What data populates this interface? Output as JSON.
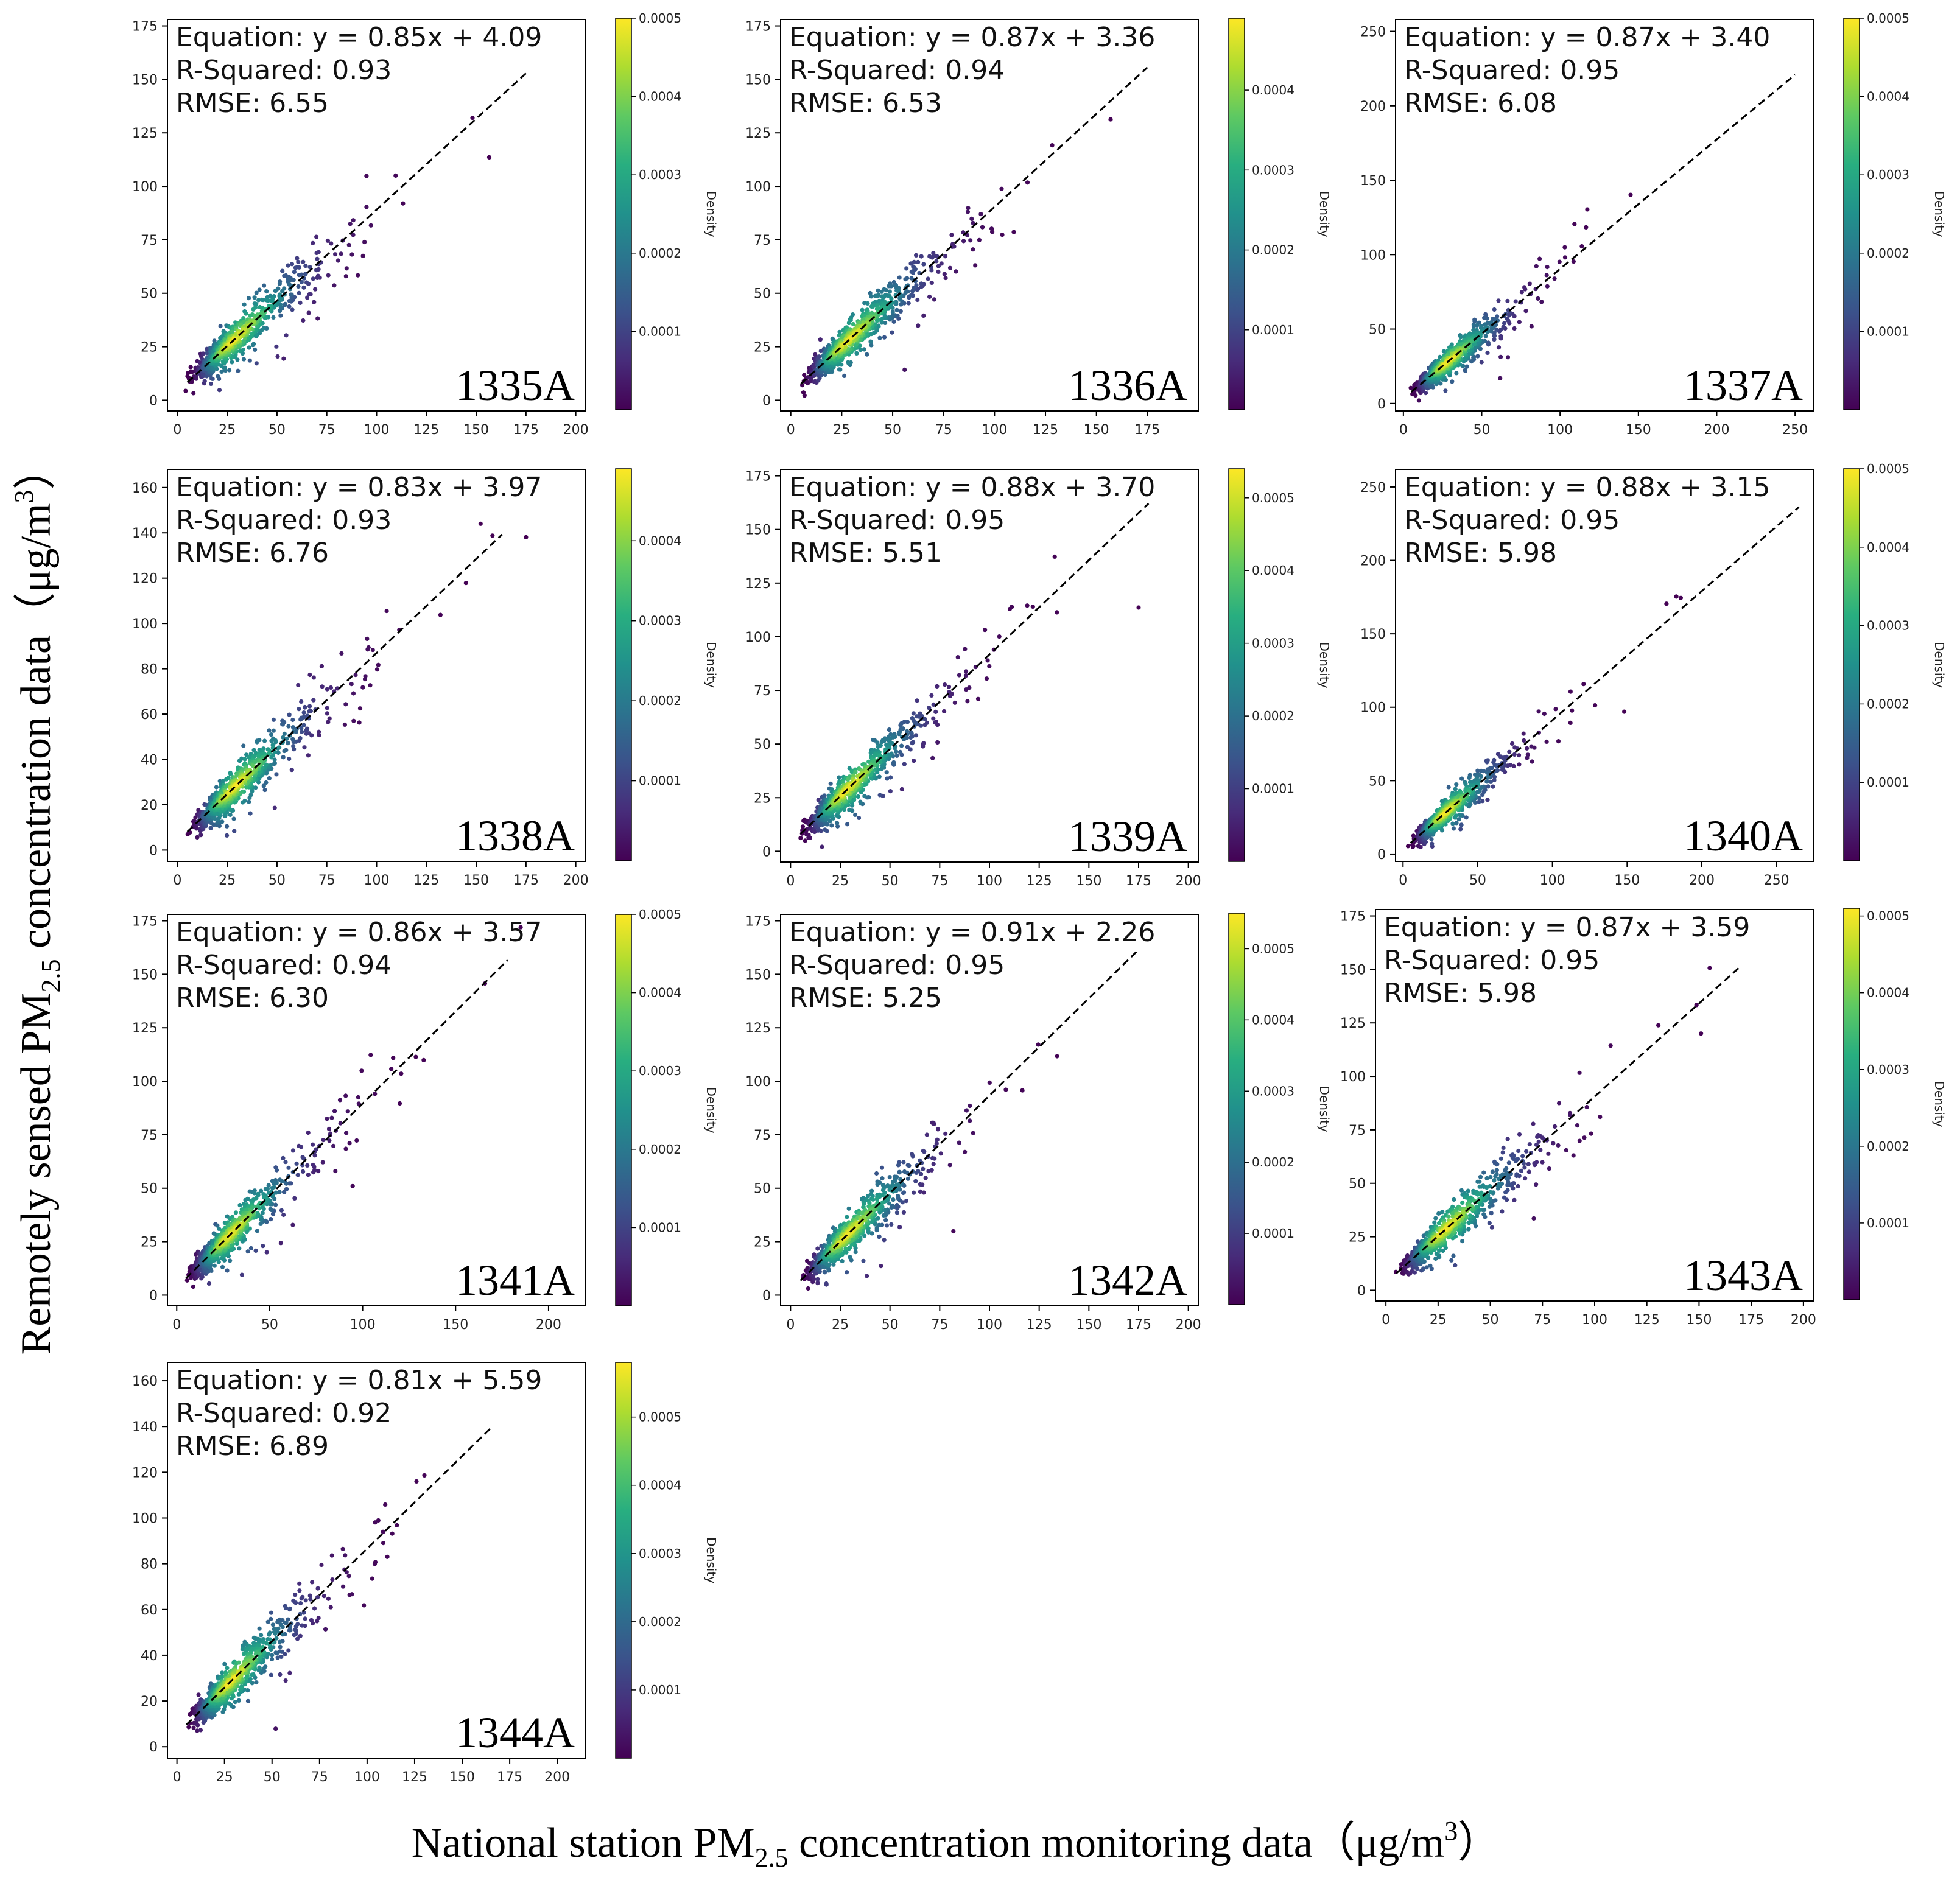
{
  "figure": {
    "ylabel": {
      "lead": "Remotely sensed PM",
      "sub": "2.5",
      "rest": " concentration data（μg/m",
      "sup": "3",
      "close": "）"
    },
    "xlabel": {
      "lead": "National station PM",
      "sub": "2.5",
      "rest": " concentration monitoring data（μg/m",
      "sup": "3",
      "close": "）"
    },
    "colors": {
      "viridis": [
        "#440154",
        "#472c7a",
        "#3b528b",
        "#2c728e",
        "#21918c",
        "#28ae80",
        "#5ec962",
        "#addc30",
        "#fde725"
      ],
      "fit_line": "#000000"
    }
  },
  "chart_data": [
    {
      "type": "scatter",
      "station": "1335A",
      "equation": "Equation: y = 0.85x + 4.09",
      "r_squared": "R-Squared: 0.93",
      "rmse": "RMSE: 6.55",
      "slope": 0.85,
      "intercept": 4.09,
      "r2": 0.93,
      "rmse_value": 6.55,
      "n_points": 700,
      "max": 180,
      "xlim": [
        -5,
        205
      ],
      "ylim": [
        -5,
        178
      ],
      "xticks": [
        0,
        25,
        50,
        75,
        100,
        125,
        150,
        175,
        200
      ],
      "yticks": [
        0,
        25,
        50,
        75,
        100,
        125,
        150,
        175
      ],
      "fit_range": [
        5,
        175
      ],
      "colorbar": {
        "label": "Density",
        "max": 0.0005,
        "ticks": [
          "0.0001",
          "0.0002",
          "0.0003",
          "0.0004",
          "0.0005"
        ],
        "tick_values": [
          0.0001,
          0.0002,
          0.0003,
          0.0004,
          0.0005
        ]
      }
    },
    {
      "type": "scatter",
      "station": "1336A",
      "equation": "Equation: y = 0.87x + 3.36",
      "r_squared": "R-Squared: 0.94",
      "rmse": "RMSE: 6.53",
      "slope": 0.87,
      "intercept": 3.36,
      "r2": 0.94,
      "rmse_value": 6.53,
      "n_points": 700,
      "max": 175,
      "xlim": [
        -5,
        200
      ],
      "ylim": [
        -5,
        178
      ],
      "xticks": [
        0,
        25,
        50,
        75,
        100,
        125,
        150,
        175
      ],
      "yticks": [
        0,
        25,
        50,
        75,
        100,
        125,
        150,
        175
      ],
      "fit_range": [
        5,
        175
      ],
      "colorbar": {
        "label": "Density",
        "max": 0.00049,
        "ticks": [
          "0.0001",
          "0.0002",
          "0.0003",
          "0.0004"
        ],
        "tick_values": [
          0.0001,
          0.0002,
          0.0003,
          0.0004
        ]
      }
    },
    {
      "type": "scatter",
      "station": "1337A",
      "equation": "Equation: y = 0.87x + 3.40",
      "r_squared": "R-Squared: 0.95",
      "rmse": "RMSE: 6.08",
      "slope": 0.87,
      "intercept": 3.4,
      "r2": 0.95,
      "rmse_value": 6.08,
      "n_points": 700,
      "max": 190,
      "xlim": [
        -5,
        262
      ],
      "ylim": [
        -5,
        258
      ],
      "xticks": [
        0,
        50,
        100,
        150,
        200,
        250
      ],
      "yticks": [
        0,
        50,
        100,
        150,
        200,
        250
      ],
      "fit_range": [
        5,
        250
      ],
      "colorbar": {
        "label": "Density",
        "max": 0.0005,
        "ticks": [
          "0.0001",
          "0.0002",
          "0.0003",
          "0.0004",
          "0.0005"
        ],
        "tick_values": [
          0.0001,
          0.0002,
          0.0003,
          0.0004,
          0.0005
        ]
      }
    },
    {
      "type": "scatter",
      "station": "1338A",
      "equation": "Equation: y = 0.83x + 3.97",
      "r_squared": "R-Squared: 0.93",
      "rmse": "RMSE: 6.76",
      "slope": 0.83,
      "intercept": 3.97,
      "r2": 0.93,
      "rmse_value": 6.76,
      "n_points": 700,
      "max": 175,
      "xlim": [
        -5,
        205
      ],
      "ylim": [
        -5,
        168
      ],
      "xticks": [
        0,
        25,
        50,
        75,
        100,
        125,
        150,
        175,
        200
      ],
      "yticks": [
        0,
        20,
        40,
        60,
        80,
        100,
        120,
        140,
        160
      ],
      "fit_range": [
        5,
        163
      ],
      "colorbar": {
        "label": "Density",
        "max": 0.00049,
        "ticks": [
          "0.0001",
          "0.0002",
          "0.0003",
          "0.0004"
        ],
        "tick_values": [
          0.0001,
          0.0002,
          0.0003,
          0.0004
        ]
      }
    },
    {
      "type": "scatter",
      "station": "1339A",
      "equation": "Equation: y = 0.88x + 3.70",
      "r_squared": "R-Squared: 0.95",
      "rmse": "RMSE: 5.51",
      "slope": 0.88,
      "intercept": 3.7,
      "r2": 0.95,
      "rmse_value": 5.51,
      "n_points": 700,
      "max": 175,
      "xlim": [
        -5,
        205
      ],
      "ylim": [
        -5,
        178
      ],
      "xticks": [
        0,
        25,
        50,
        75,
        100,
        125,
        150,
        175,
        200
      ],
      "yticks": [
        0,
        25,
        50,
        75,
        100,
        125,
        150,
        175
      ],
      "fit_range": [
        5,
        180
      ],
      "colorbar": {
        "label": "Density",
        "max": 0.00054,
        "ticks": [
          "0.0001",
          "0.0002",
          "0.0003",
          "0.0004",
          "0.0005"
        ],
        "tick_values": [
          0.0001,
          0.0002,
          0.0003,
          0.0004,
          0.0005
        ]
      }
    },
    {
      "type": "scatter",
      "station": "1340A",
      "equation": "Equation: y = 0.88x + 3.15",
      "r_squared": "R-Squared: 0.95",
      "rmse": "RMSE: 5.98",
      "slope": 0.88,
      "intercept": 3.15,
      "r2": 0.95,
      "rmse_value": 5.98,
      "n_points": 700,
      "max": 195,
      "xlim": [
        -5,
        275
      ],
      "ylim": [
        -5,
        262
      ],
      "xticks": [
        0,
        50,
        100,
        150,
        200,
        250
      ],
      "yticks": [
        0,
        50,
        100,
        150,
        200,
        250
      ],
      "fit_range": [
        5,
        265
      ],
      "colorbar": {
        "label": "Density",
        "max": 0.0005,
        "ticks": [
          "0.0001",
          "0.0002",
          "0.0003",
          "0.0004",
          "0.0005"
        ],
        "tick_values": [
          0.0001,
          0.0002,
          0.0003,
          0.0004,
          0.0005
        ]
      }
    },
    {
      "type": "scatter",
      "station": "1341A",
      "equation": "Equation: y = 0.86x + 3.57",
      "r_squared": "R-Squared: 0.94",
      "rmse": "RMSE: 6.30",
      "slope": 0.86,
      "intercept": 3.57,
      "r2": 0.94,
      "rmse_value": 6.3,
      "n_points": 700,
      "max": 185,
      "xlim": [
        -5,
        220
      ],
      "ylim": [
        -5,
        178
      ],
      "xticks": [
        0,
        50,
        100,
        150,
        200
      ],
      "yticks": [
        0,
        25,
        50,
        75,
        100,
        125,
        150,
        175
      ],
      "fit_range": [
        5,
        178
      ],
      "colorbar": {
        "label": "Density",
        "max": 0.0005,
        "ticks": [
          "0.0001",
          "0.0002",
          "0.0003",
          "0.0004",
          "0.0005"
        ],
        "tick_values": [
          0.0001,
          0.0002,
          0.0003,
          0.0004,
          0.0005
        ]
      }
    },
    {
      "type": "scatter",
      "station": "1342A",
      "equation": "Equation: y = 0.91x + 2.26",
      "r_squared": "R-Squared: 0.95",
      "rmse": "RMSE: 5.25",
      "slope": 0.91,
      "intercept": 2.26,
      "r2": 0.95,
      "rmse_value": 5.25,
      "n_points": 700,
      "max": 180,
      "xlim": [
        -5,
        205
      ],
      "ylim": [
        -5,
        178
      ],
      "xticks": [
        0,
        25,
        50,
        75,
        100,
        125,
        150,
        175,
        200
      ],
      "yticks": [
        0,
        25,
        50,
        75,
        100,
        125,
        150,
        175
      ],
      "fit_range": [
        5,
        175
      ],
      "colorbar": {
        "label": "Density",
        "max": 0.00055,
        "ticks": [
          "0.0001",
          "0.0002",
          "0.0003",
          "0.0004",
          "0.0005"
        ],
        "tick_values": [
          0.0001,
          0.0002,
          0.0003,
          0.0004,
          0.0005
        ]
      }
    },
    {
      "type": "scatter",
      "station": "1343A",
      "equation": "Equation: y = 0.87x + 3.59",
      "r_squared": "R-Squared: 0.95",
      "rmse": "RMSE: 5.98",
      "slope": 0.87,
      "intercept": 3.59,
      "r2": 0.95,
      "rmse_value": 5.98,
      "n_points": 700,
      "max": 180,
      "xlim": [
        -5,
        205
      ],
      "ylim": [
        -5,
        178
      ],
      "xticks": [
        0,
        25,
        50,
        75,
        100,
        125,
        150,
        175,
        200
      ],
      "yticks": [
        0,
        25,
        50,
        75,
        100,
        125,
        150,
        175
      ],
      "fit_range": [
        5,
        170
      ],
      "colorbar": {
        "label": "Density",
        "max": 0.00051,
        "ticks": [
          "0.0001",
          "0.0002",
          "0.0003",
          "0.0004",
          "0.0005"
        ],
        "tick_values": [
          0.0001,
          0.0002,
          0.0003,
          0.0004,
          0.0005
        ]
      }
    },
    {
      "type": "scatter",
      "station": "1344A",
      "equation": "Equation: y = 0.81x + 5.59",
      "r_squared": "R-Squared: 0.92",
      "rmse": "RMSE: 6.89",
      "slope": 0.81,
      "intercept": 5.59,
      "r2": 0.92,
      "rmse_value": 6.89,
      "n_points": 700,
      "max": 175,
      "xlim": [
        -5,
        215
      ],
      "ylim": [
        -5,
        168
      ],
      "xticks": [
        0,
        25,
        50,
        75,
        100,
        125,
        150,
        175,
        200
      ],
      "yticks": [
        0,
        20,
        40,
        60,
        80,
        100,
        120,
        140,
        160
      ],
      "fit_range": [
        5,
        165
      ],
      "colorbar": {
        "label": "Density",
        "max": 0.00058,
        "ticks": [
          "0.0001",
          "0.0002",
          "0.0003",
          "0.0004",
          "0.0005"
        ],
        "tick_values": [
          0.0001,
          0.0002,
          0.0003,
          0.0004,
          0.0005
        ]
      }
    }
  ]
}
